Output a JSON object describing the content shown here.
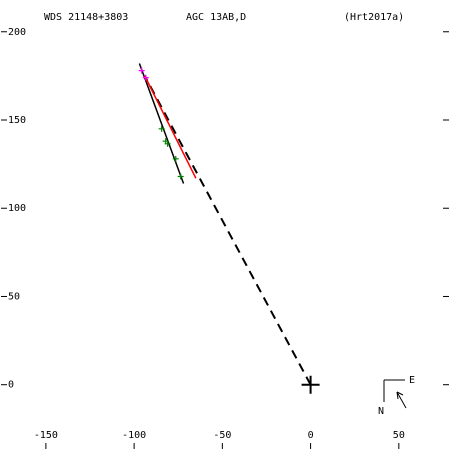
{
  "chart_data": {
    "type": "scatter",
    "title": "WDS 21148+3803",
    "subtitle": "AGC  13AB,D",
    "reference": "(Hrt2017a)",
    "compass": {
      "east": "E",
      "north": "N"
    },
    "xlim": [
      -176,
      79
    ],
    "ylim": [
      -37,
      218
    ],
    "xticks": [
      -150,
      -100,
      -50,
      0,
      50
    ],
    "yticks": [
      0,
      50,
      100,
      150,
      200
    ],
    "series": [
      {
        "color": "#000000",
        "style": "dashed",
        "x": [
          0,
          -94
        ],
        "values": [
          0,
          175
        ]
      },
      {
        "color": "#000000",
        "style": "line",
        "x": [
          -97,
          -72
        ],
        "values": [
          182,
          114
        ]
      },
      {
        "color": "#ff0000",
        "style": "line",
        "x": [
          -94,
          -65
        ],
        "values": [
          175,
          117
        ]
      },
      {
        "color": "#008000",
        "style": "plus",
        "x": [
          -84.4,
          -82.1,
          -81,
          -76.4,
          -73.6
        ],
        "values": [
          145,
          138,
          136.5,
          128,
          118
        ]
      },
      {
        "color": "#ff00ff",
        "style": "plus",
        "x": [
          -95.7,
          -93.4
        ],
        "values": [
          178,
          174
        ]
      },
      {
        "color": "#000000",
        "style": "cross",
        "x": [
          0
        ],
        "values": [
          0
        ]
      }
    ]
  }
}
